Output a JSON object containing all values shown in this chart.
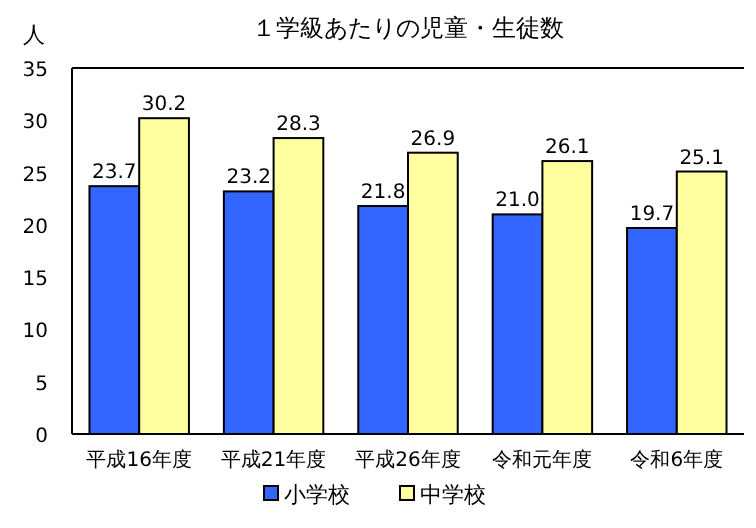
{
  "chart_data": {
    "type": "bar",
    "title": "１学級あたりの児童・生徒数",
    "ylabel": "人",
    "categories": [
      "平成16年度",
      "平成21年度",
      "平成26年度",
      "令和元年度",
      "令和6年度"
    ],
    "series": [
      {
        "name": "小学校",
        "color": "#3366ff",
        "values": [
          23.7,
          23.2,
          21.8,
          21.0,
          19.7
        ],
        "value_labels": [
          "23.7",
          "23.2",
          "21.8",
          "21.0",
          "19.7"
        ]
      },
      {
        "name": "中学校",
        "color": "#ffffa0",
        "values": [
          30.2,
          28.3,
          26.9,
          26.1,
          25.1
        ],
        "value_labels": [
          "30.2",
          "28.3",
          "26.9",
          "26.1",
          "25.1"
        ]
      }
    ],
    "ylim": [
      0,
      35
    ],
    "yticks": [
      0,
      5,
      10,
      15,
      20,
      25,
      30,
      35
    ],
    "grid": false,
    "legend": "bottom"
  }
}
